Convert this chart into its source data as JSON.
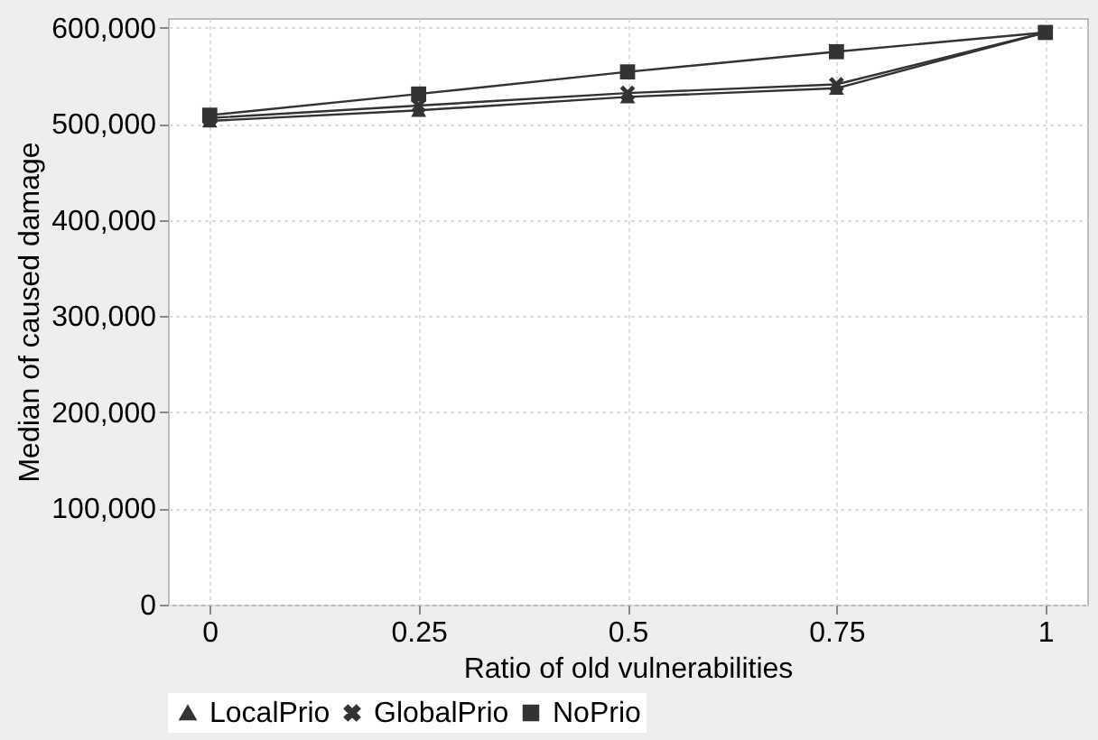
{
  "chart_data": {
    "type": "line",
    "xlabel": "Ratio of old vulnerabilities",
    "ylabel": "Median of caused damage",
    "x": [
      0,
      0.25,
      0.5,
      0.75,
      1
    ],
    "series": [
      {
        "name": "LocalPrio",
        "color": "#333333",
        "marker": "triangle",
        "values": [
          503000,
          514000,
          528000,
          537000,
          595000
        ]
      },
      {
        "name": "GlobalPrio",
        "color": "#333333",
        "marker": "cross",
        "values": [
          506000,
          519000,
          532000,
          541000,
          595000
        ]
      },
      {
        "name": "NoPrio",
        "color": "#333333",
        "marker": "square",
        "values": [
          509000,
          531000,
          554000,
          575000,
          595000
        ]
      }
    ],
    "xlim": [
      -0.05,
      1.05
    ],
    "xticks": [
      0,
      0.25,
      0.5,
      0.75,
      1
    ],
    "ylim": [
      0,
      610000
    ],
    "yticks": [
      0,
      {
        "value": 100000,
        "label": "100,000"
      },
      {
        "value": 200000,
        "label": "200,000"
      },
      {
        "value": 300000,
        "label": "300,000"
      },
      {
        "value": 400000,
        "label": "400,000"
      },
      {
        "value": 500000,
        "label": "500,000"
      },
      {
        "value": 600000,
        "label": "600,000"
      }
    ],
    "grid": true,
    "legend": "bottom"
  }
}
